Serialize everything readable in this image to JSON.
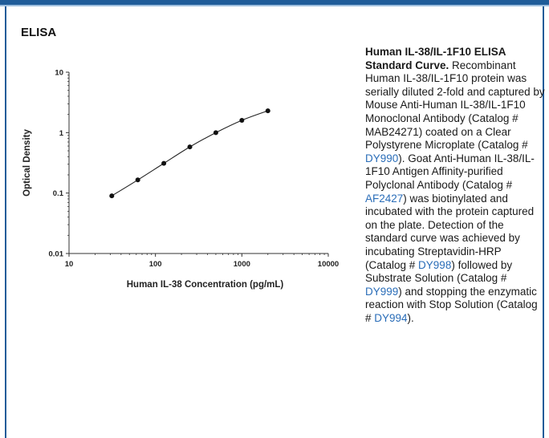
{
  "section_title": "ELISA",
  "caption": {
    "bold_title": "Human IL-38/IL-1F10 ELISA Standard Curve.",
    "parts": [
      {
        "text": " Recombinant Human IL-38/IL-1F10 protein was serially diluted 2-fold and captured by Mouse Anti-Human IL-38/IL-1F10 Monoclonal Antibody (Catalog # MAB24271) coated on a Clear Polystyrene Microplate (Catalog # ",
        "link": false
      },
      {
        "text": "DY990",
        "link": true
      },
      {
        "text": "). Goat Anti-Human IL-38/IL-1F10 Antigen Affinity-purified Polyclonal Antibody (Catalog # ",
        "link": false
      },
      {
        "text": "AF2427",
        "link": true
      },
      {
        "text": ") was biotinylated and incubated with the protein captured on the plate. Detection of the standard curve was achieved by incubating Streptavidin-HRP (Catalog # ",
        "link": false
      },
      {
        "text": "DY998",
        "link": true
      },
      {
        "text": ") followed by Substrate Solution (Catalog # ",
        "link": false
      },
      {
        "text": "DY999",
        "link": true
      },
      {
        "text": ") and stopping the enzymatic reaction with Stop Solution (Catalog # ",
        "link": false
      },
      {
        "text": "DY994",
        "link": true
      },
      {
        "text": ").",
        "link": false
      }
    ]
  },
  "colors": {
    "frame_blue": "#1f5c99",
    "link_blue": "#2a6db8",
    "marker": "#111111"
  },
  "chart_data": {
    "type": "scatter",
    "title": "",
    "xlabel": "Human IL-38 Concentration (pg/mL)",
    "ylabel": "Optical Density",
    "x_scale": "log",
    "y_scale": "log",
    "xlim": [
      10,
      10000
    ],
    "ylim": [
      0.01,
      10
    ],
    "x_ticks": [
      10,
      100,
      1000,
      10000
    ],
    "x_tick_labels": [
      "10",
      "100",
      "1000",
      "10000"
    ],
    "y_ticks": [
      0.01,
      0.1,
      1,
      10
    ],
    "y_tick_labels": [
      "0.01",
      "0.1",
      "1",
      "10"
    ],
    "grid": false,
    "legend": "none",
    "fit_curve": true,
    "series": [
      {
        "x": [
          31.25,
          62.5,
          125,
          250,
          500,
          1000,
          2000
        ],
        "y": [
          0.09,
          0.165,
          0.31,
          0.58,
          1.0,
          1.6,
          2.3
        ]
      }
    ]
  }
}
